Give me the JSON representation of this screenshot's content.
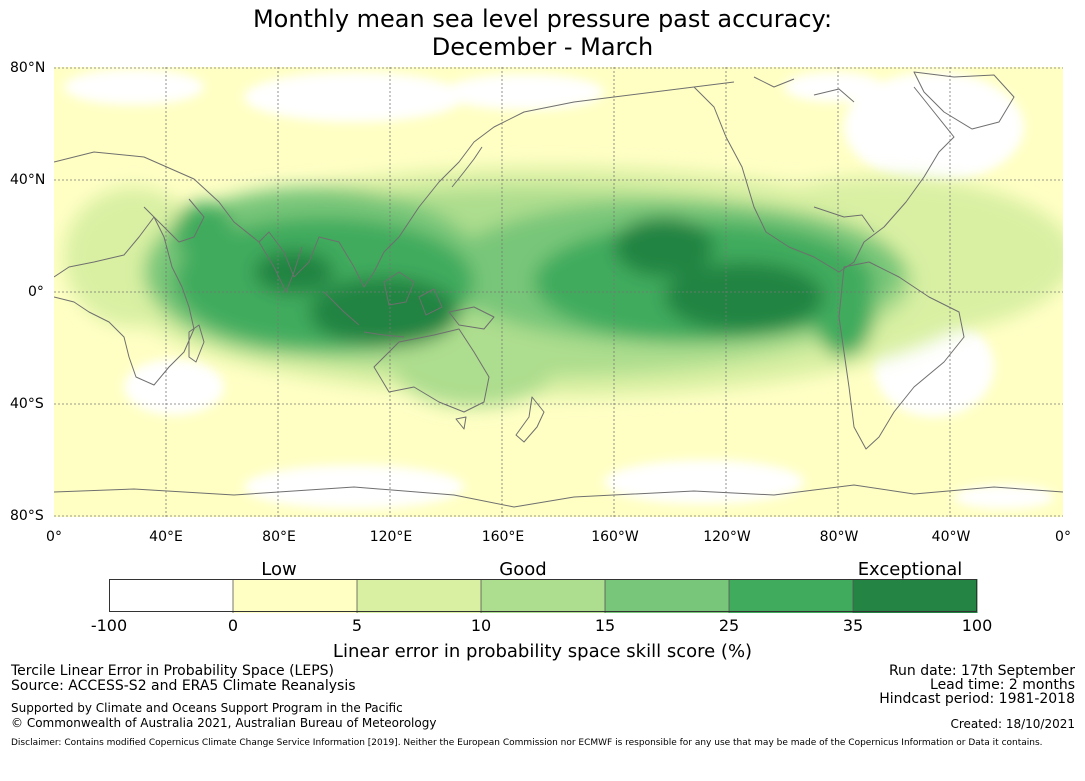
{
  "title": {
    "line1": "Monthly mean sea level pressure past accuracy:",
    "line2": "December - March"
  },
  "map": {
    "lat_labels": [
      "80°N",
      "40°N",
      "0°",
      "40°S",
      "80°S"
    ],
    "lon_labels": [
      "0°",
      "40°E",
      "80°E",
      "120°E",
      "160°E",
      "160°W",
      "120°W",
      "80°W",
      "40°W",
      "0°"
    ],
    "colors": {
      "land_outline": "#6f6f6f",
      "grid": "#777777",
      "ocean_base": "#ffffc4"
    }
  },
  "colorbar": {
    "categories": [
      "Low",
      "Good",
      "Exceptional"
    ],
    "ticks": [
      "-100",
      "0",
      "5",
      "10",
      "15",
      "25",
      "35",
      "100"
    ],
    "colors": [
      "#ffffff",
      "#ffffc4",
      "#d9f0a3",
      "#addd8e",
      "#78c679",
      "#41ab5d",
      "#238443"
    ],
    "label": "Linear error in probability space skill score (%)"
  },
  "info": {
    "left1": "Tercile Linear Error in Probability Space (LEPS)",
    "left2": "Source: ACCESS-S2 and ERA5 Climate Reanalysis",
    "left3": "Supported by Climate and Oceans Support Program in the Pacific",
    "left4": "© Commonwealth of Australia 2021, Australian Bureau of Meteorology",
    "right1": "Run date: 17th September",
    "right2": "Lead time: 2 months",
    "right3": "Hindcast period: 1981-2018",
    "right4": "Created: 18/10/2021",
    "disclaimer": "Disclaimer: Contains modified Copernicus Climate Change Service Information [2019]. Neither the European Commission nor ECMWF is responsible for any use that may be made of the Copernicus Information or Data it contains."
  }
}
